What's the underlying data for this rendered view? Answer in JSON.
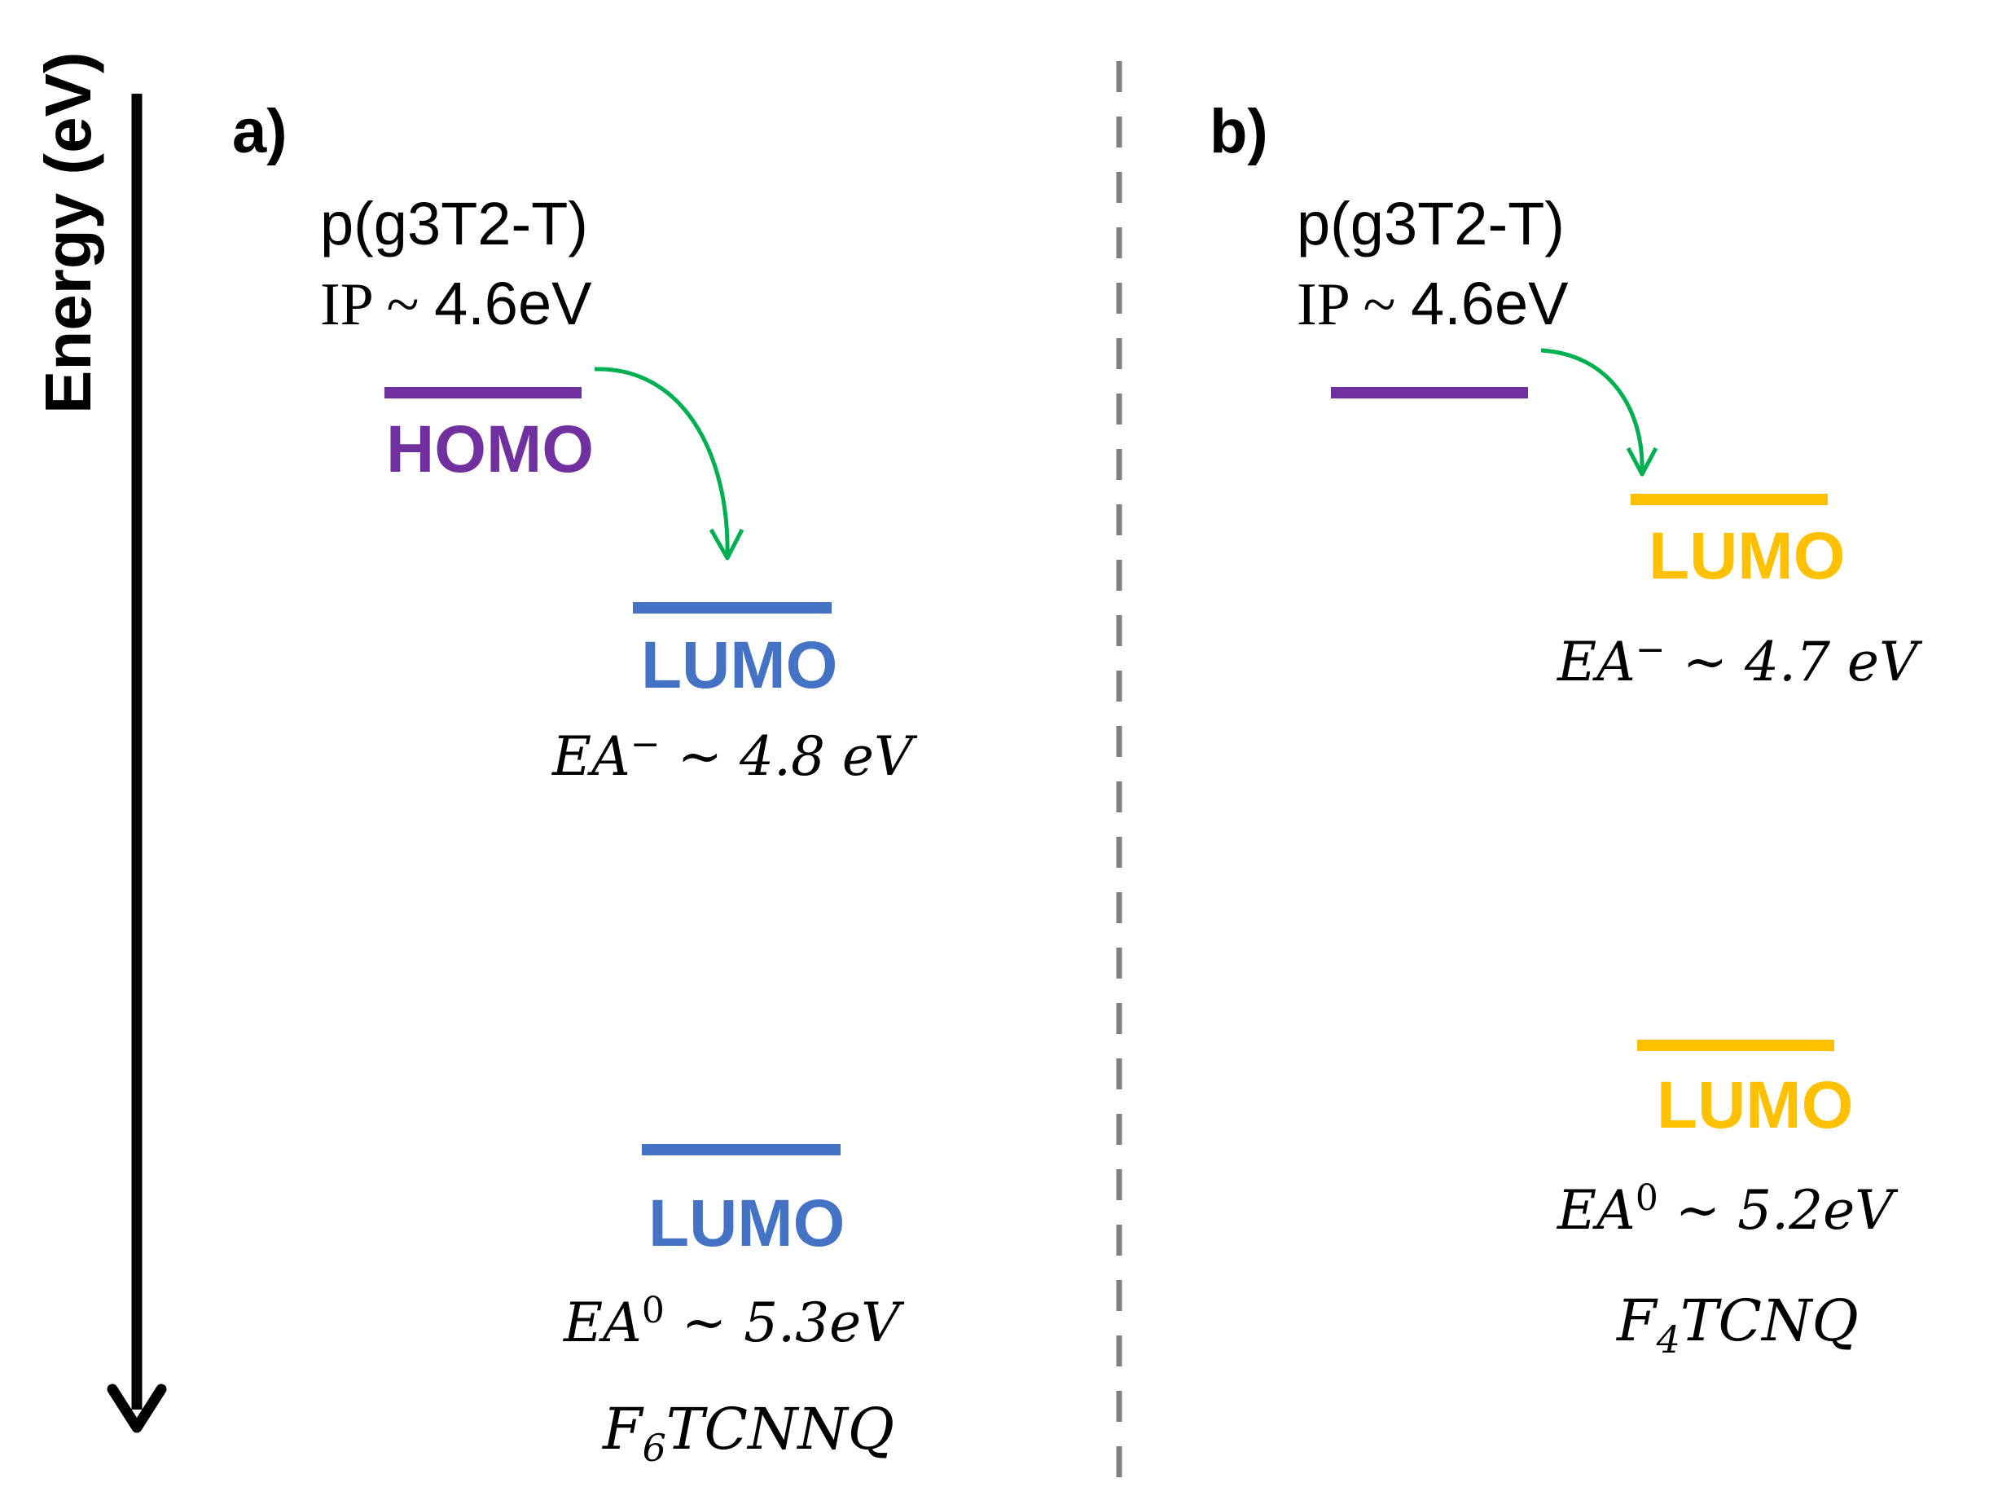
{
  "axis": {
    "title": "Energy (eV)"
  },
  "colors": {
    "homo": "#7030A0",
    "lumo_a": "#4472C4",
    "lumo_b": "#FFC000",
    "arrow": "#00B050",
    "divider": "#808080",
    "axis": "#000000"
  },
  "panel_a": {
    "label": "a)",
    "polymer": "p(g3T2-T)",
    "ip_prefix": "IP ~ ",
    "ip_value": "4.6eV",
    "homo_label": "HOMO",
    "lumo1_label": "LUMO",
    "ea1_main": "EA",
    "ea1_sup": "−",
    "ea1_rest": " ~ 4.8 eV",
    "lumo2_label": "LUMO",
    "ea2_main": "EA",
    "ea2_sup": "0",
    "ea2_rest": " ~ 5.3eV",
    "dopant_f": "F",
    "dopant_sub": "6",
    "dopant_rest": "TCNNQ"
  },
  "panel_b": {
    "label": "b)",
    "polymer": "p(g3T2-T)",
    "ip_prefix": "IP ~ ",
    "ip_value": "4.6eV",
    "lumo1_label": "LUMO",
    "ea1_main": "EA",
    "ea1_sup": "−",
    "ea1_rest": " ~ 4.7 eV",
    "lumo2_label": "LUMO",
    "ea2_main": "EA",
    "ea2_sup": "0",
    "ea2_rest": " ~ 5.2eV",
    "dopant_f": "F",
    "dopant_sub": "4",
    "dopant_rest": "TCNQ"
  }
}
